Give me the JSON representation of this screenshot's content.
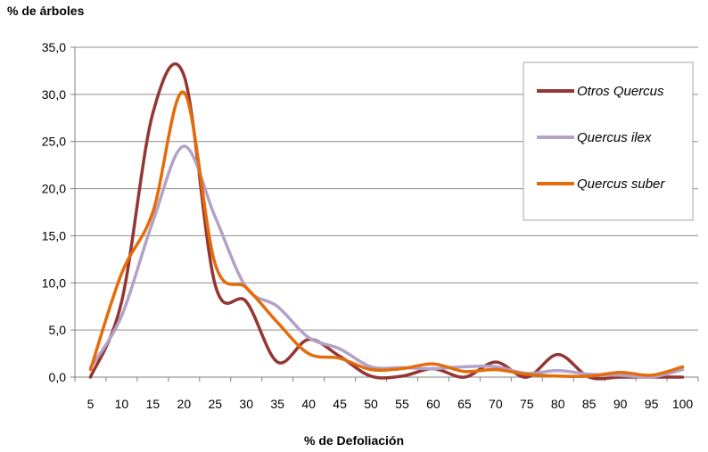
{
  "chart_data": {
    "type": "line",
    "title": "",
    "ylabel": "% de árboles",
    "xlabel": "% de Defoliación",
    "x": [
      5,
      10,
      15,
      20,
      25,
      30,
      35,
      40,
      45,
      50,
      55,
      60,
      65,
      70,
      75,
      80,
      85,
      90,
      95,
      100
    ],
    "ylim": [
      0,
      35
    ],
    "yticks": [
      "0,0",
      "5,0",
      "10,0",
      "15,0",
      "20,0",
      "25,0",
      "30,0",
      "35,0"
    ],
    "grid": "horizontal",
    "legend_position": "top-right",
    "series": [
      {
        "name": "Otros Quercus",
        "color": "#943634",
        "values": [
          0.0,
          8.0,
          28.0,
          32.0,
          9.8,
          8.0,
          1.6,
          4.0,
          2.2,
          0.1,
          0.1,
          0.9,
          0.0,
          1.6,
          0.0,
          2.4,
          0.0,
          0.0,
          0.0,
          0.0
        ]
      },
      {
        "name": "Quercus ilex",
        "color": "#B3A2C7",
        "values": [
          1.0,
          6.5,
          16.5,
          24.5,
          17.0,
          9.5,
          7.5,
          4.2,
          3.0,
          1.1,
          1.0,
          0.9,
          1.1,
          1.1,
          0.4,
          0.7,
          0.3,
          0.2,
          0.0,
          0.8
        ]
      },
      {
        "name": "Quercus suber",
        "color": "#E46C0A",
        "values": [
          0.8,
          11.0,
          17.5,
          30.2,
          12.0,
          9.5,
          5.8,
          2.5,
          2.0,
          0.8,
          0.9,
          1.4,
          0.6,
          0.8,
          0.3,
          0.1,
          0.1,
          0.5,
          0.2,
          1.1
        ]
      }
    ]
  }
}
